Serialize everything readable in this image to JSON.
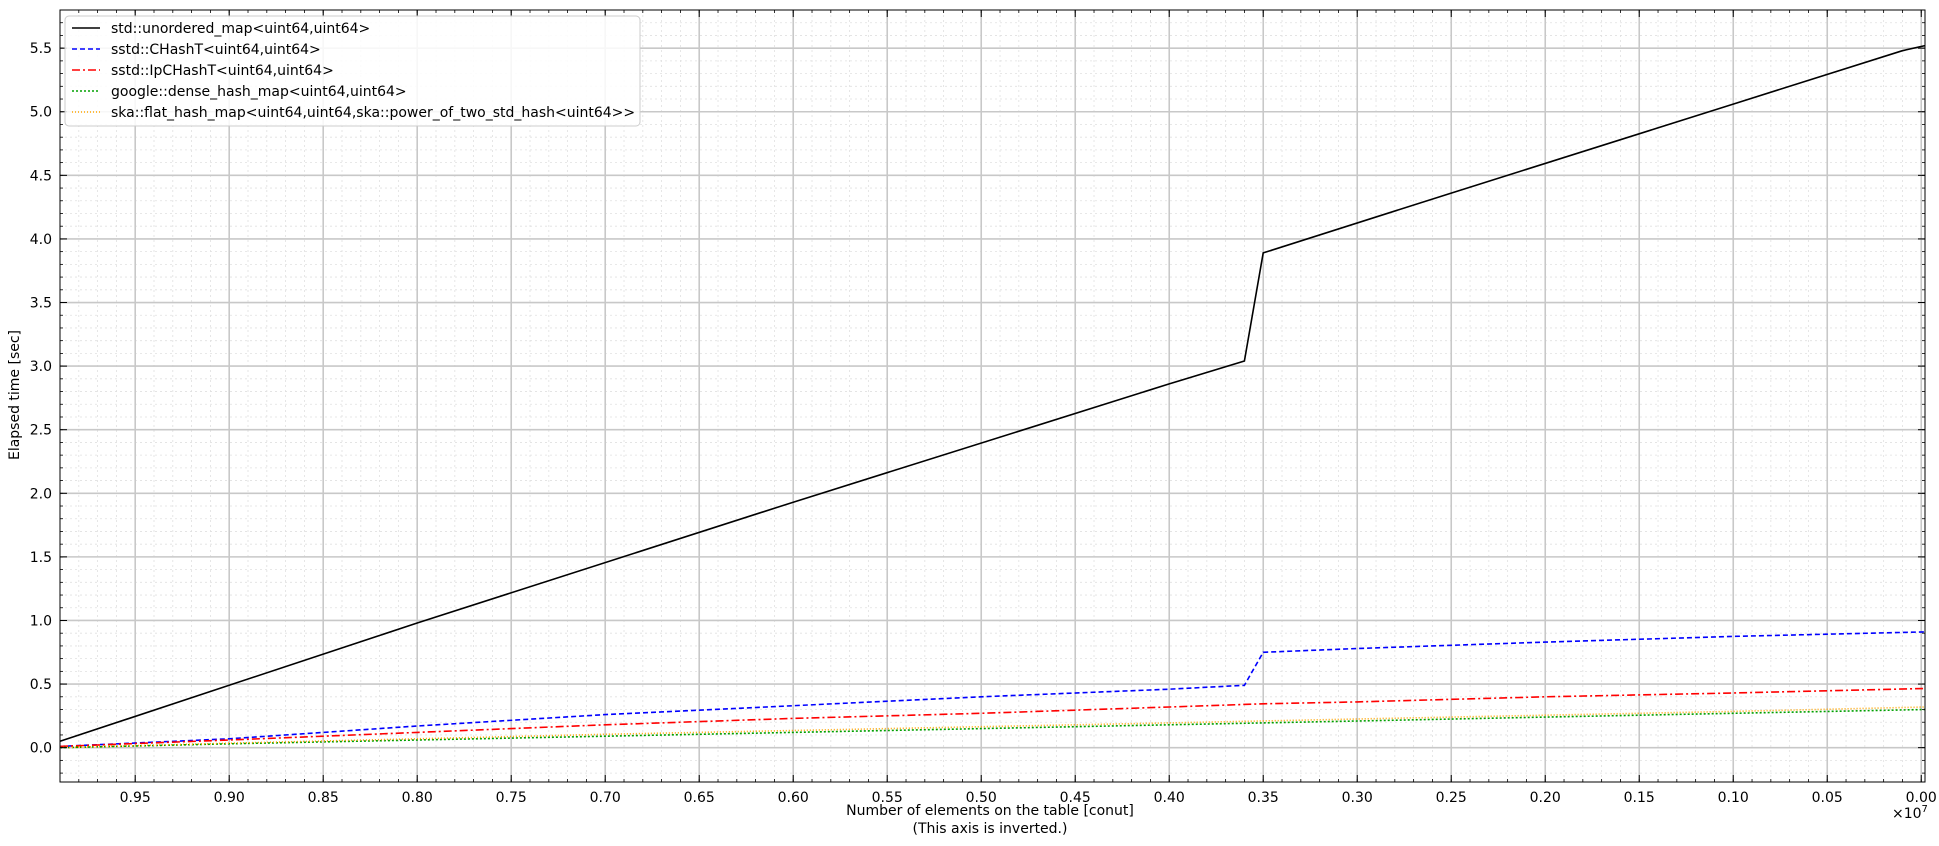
{
  "chart_data": {
    "type": "line",
    "xlabel": "Number of elements on the table [conut]",
    "xlabel_note": "(This axis is inverted.)",
    "ylabel": "Elapsed time [sec]",
    "x_multiplier_label": "×10",
    "x_multiplier_exponent": "7",
    "xlim": [
      0.99,
      -0.002
    ],
    "ylim": [
      -0.27,
      5.8
    ],
    "x_inverted": true,
    "grid": true,
    "legend_position": "top-left",
    "x_ticks": [
      0.95,
      0.9,
      0.85,
      0.8,
      0.75,
      0.7,
      0.65,
      0.6,
      0.55,
      0.5,
      0.45,
      0.4,
      0.35,
      0.3,
      0.25,
      0.2,
      0.15,
      0.1,
      0.05,
      0.0
    ],
    "x_tick_labels": [
      "0.95",
      "0.90",
      "0.85",
      "0.80",
      "0.75",
      "0.70",
      "0.65",
      "0.60",
      "0.55",
      "0.50",
      "0.45",
      "0.40",
      "0.35",
      "0.30",
      "0.25",
      "0.20",
      "0.15",
      "0.10",
      "0.05",
      "0.00"
    ],
    "y_ticks": [
      0.0,
      0.5,
      1.0,
      1.5,
      2.0,
      2.5,
      3.0,
      3.5,
      4.0,
      4.5,
      5.0,
      5.5
    ],
    "y_tick_labels": [
      "0.0",
      "0.5",
      "1.0",
      "1.5",
      "2.0",
      "2.5",
      "3.0",
      "3.5",
      "4.0",
      "4.5",
      "5.0",
      "5.5"
    ],
    "series": [
      {
        "name": "std::unordered_map<uint64,uint64>",
        "color": "#000000",
        "dash": "solid",
        "points": [
          [
            0.99,
            0.05
          ],
          [
            0.8,
            0.98
          ],
          [
            0.6,
            1.93
          ],
          [
            0.4,
            2.86
          ],
          [
            0.36,
            3.04
          ],
          [
            0.35,
            3.89
          ],
          [
            0.25,
            4.36
          ],
          [
            0.1,
            5.06
          ],
          [
            0.01,
            5.48
          ],
          [
            -0.002,
            5.52
          ]
        ]
      },
      {
        "name": "sstd::CHashT<uint64,uint64>",
        "color": "#0000ff",
        "dash": "dashed",
        "points": [
          [
            0.99,
            0.01
          ],
          [
            0.9,
            0.07
          ],
          [
            0.8,
            0.17
          ],
          [
            0.7,
            0.26
          ],
          [
            0.6,
            0.33
          ],
          [
            0.5,
            0.4
          ],
          [
            0.4,
            0.46
          ],
          [
            0.36,
            0.49
          ],
          [
            0.35,
            0.75
          ],
          [
            0.3,
            0.78
          ],
          [
            0.2,
            0.83
          ],
          [
            0.1,
            0.875
          ],
          [
            -0.002,
            0.91
          ]
        ]
      },
      {
        "name": "sstd::IpCHashT<uint64,uint64>",
        "color": "#ff0000",
        "dash": "dashdot",
        "points": [
          [
            0.99,
            0.01
          ],
          [
            0.9,
            0.06
          ],
          [
            0.8,
            0.12
          ],
          [
            0.7,
            0.18
          ],
          [
            0.6,
            0.23
          ],
          [
            0.5,
            0.27
          ],
          [
            0.4,
            0.32
          ],
          [
            0.35,
            0.345
          ],
          [
            0.3,
            0.36
          ],
          [
            0.2,
            0.4
          ],
          [
            0.1,
            0.43
          ],
          [
            -0.002,
            0.465
          ]
        ]
      },
      {
        "name": "google::dense_hash_map<uint64,uint64>",
        "color": "#00a000",
        "dash": "dotted",
        "points": [
          [
            0.99,
            0.0
          ],
          [
            0.9,
            0.03
          ],
          [
            0.8,
            0.06
          ],
          [
            0.7,
            0.09
          ],
          [
            0.6,
            0.12
          ],
          [
            0.5,
            0.15
          ],
          [
            0.4,
            0.18
          ],
          [
            0.3,
            0.21
          ],
          [
            0.2,
            0.24
          ],
          [
            0.1,
            0.27
          ],
          [
            -0.002,
            0.3
          ]
        ]
      },
      {
        "name": "ska::flat_hash_map<uint64,uint64,ska::power_of_two_std_hash<uint64>>",
        "color": "#ffa500",
        "dash": "dotted_fine",
        "points": [
          [
            0.99,
            0.0
          ],
          [
            0.9,
            0.035
          ],
          [
            0.8,
            0.07
          ],
          [
            0.7,
            0.105
          ],
          [
            0.6,
            0.135
          ],
          [
            0.5,
            0.165
          ],
          [
            0.4,
            0.195
          ],
          [
            0.3,
            0.225
          ],
          [
            0.2,
            0.255
          ],
          [
            0.1,
            0.285
          ],
          [
            -0.002,
            0.32
          ]
        ]
      }
    ]
  }
}
